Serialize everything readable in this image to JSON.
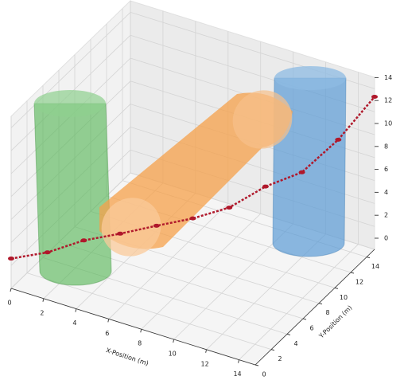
{
  "chart_data": {
    "type": "scatter3d",
    "xlabel": "X-Position (m)",
    "ylabel": "Y-Position (m)",
    "xlim": [
      0,
      15
    ],
    "ylim": [
      0,
      15
    ],
    "zlim": [
      0,
      15
    ],
    "xticks": [
      0,
      2,
      4,
      6,
      8,
      10,
      12,
      14
    ],
    "yticks": [
      0,
      2,
      4,
      6,
      8,
      10,
      12,
      14
    ],
    "zticks": [
      0,
      2,
      4,
      6,
      8,
      10,
      12,
      14
    ],
    "grid": true,
    "series": [
      {
        "color": "#b0182b",
        "x": [
          0,
          1.5,
          3,
          4.5,
          6,
          7.5,
          9,
          10.5,
          12,
          13.5,
          15
        ],
        "y": [
          0,
          1.5,
          3,
          4.5,
          6,
          7.5,
          9,
          10.5,
          12,
          13.5,
          15
        ],
        "values": [
          2.6,
          2.8,
          3.5,
          3.75,
          4.1,
          4.4,
          5.0,
          6.5,
          7.4,
          9.9,
          13.3
        ]
      }
    ]
  }
}
